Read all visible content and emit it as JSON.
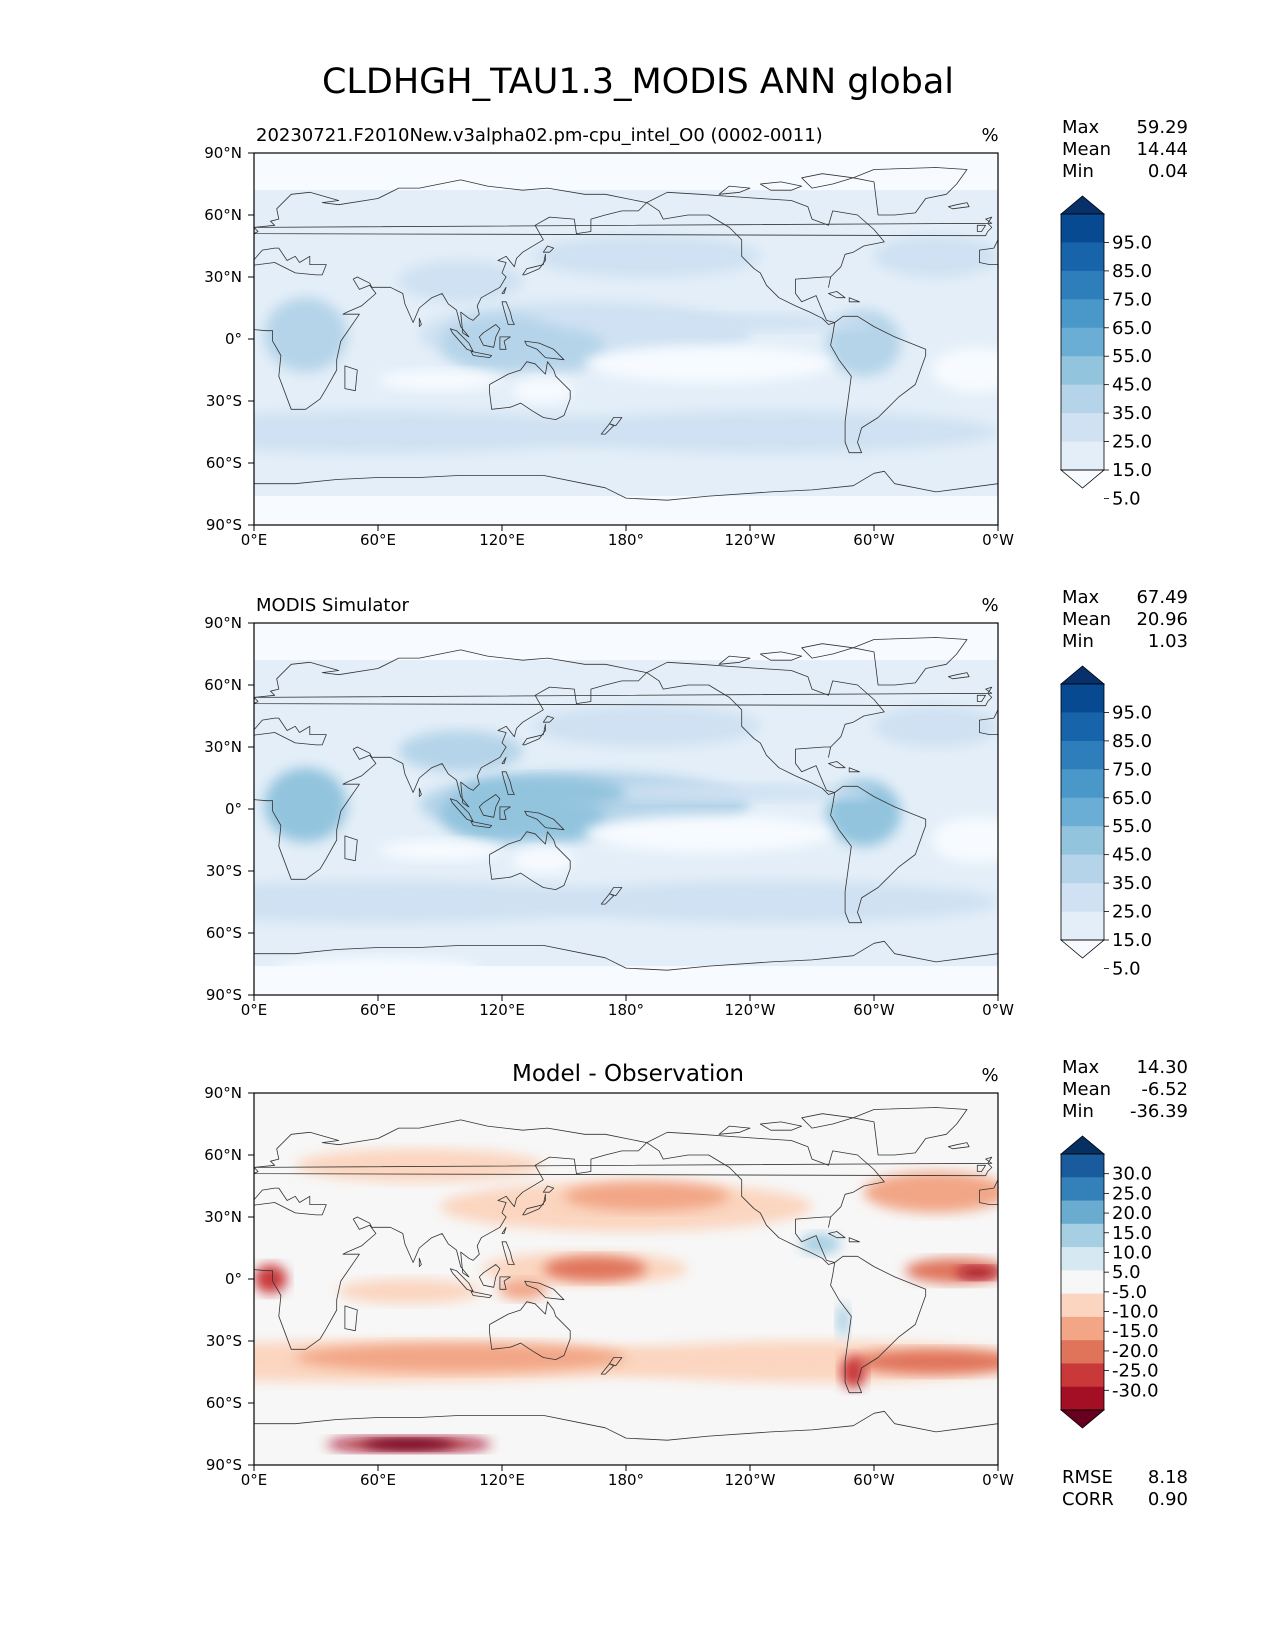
{
  "figure": {
    "title": "CLDHGH_TAU1.3_MODIS ANN global"
  },
  "colors": {
    "blues": [
      "#f7fbff",
      "#e3eef8",
      "#cfe1f2",
      "#b5d4e9",
      "#93c4de",
      "#6aaed6",
      "#4a98c9",
      "#2e7ebc",
      "#1764ab",
      "#084a91",
      "#08306b"
    ],
    "diff": [
      "#67001f",
      "#a50f26",
      "#c9393a",
      "#e0745b",
      "#f2a686",
      "#fbd5bf",
      "#f7f7f7",
      "#d6e8f1",
      "#a7cfe4",
      "#6aacd0",
      "#3480b9",
      "#1a5b9d",
      "#053061"
    ],
    "coast": "#333333"
  },
  "axes": {
    "x_ticks": [
      "0°E",
      "60°E",
      "120°E",
      "180°",
      "120°W",
      "60°W",
      "0°W"
    ],
    "y_ticks": [
      "90°N",
      "60°N",
      "30°N",
      "0°",
      "30°S",
      "60°S",
      "90°S"
    ]
  },
  "chart_data": [
    {
      "type": "heatmap",
      "title": "20230721.F2010New.v3alpha02.pm-cpu_intel_O0 (0002-0011)",
      "units": "%",
      "stats": [
        {
          "label": "Max",
          "value": "59.29"
        },
        {
          "label": "Mean",
          "value": "14.44"
        },
        {
          "label": "Min",
          "value": "0.04"
        }
      ],
      "colorbar_levels": [
        "95.0",
        "85.0",
        "75.0",
        "65.0",
        "55.0",
        "45.0",
        "35.0",
        "25.0",
        "15.0",
        "5.0"
      ],
      "xlim": [
        0,
        360
      ],
      "ylim": [
        -90,
        90
      ]
    },
    {
      "type": "heatmap",
      "title": "MODIS Simulator",
      "units": "%",
      "stats": [
        {
          "label": "Max",
          "value": "67.49"
        },
        {
          "label": "Mean",
          "value": "20.96"
        },
        {
          "label": "Min",
          "value": "1.03"
        }
      ],
      "colorbar_levels": [
        "95.0",
        "85.0",
        "75.0",
        "65.0",
        "55.0",
        "45.0",
        "35.0",
        "25.0",
        "15.0",
        "5.0"
      ],
      "xlim": [
        0,
        360
      ],
      "ylim": [
        -90,
        90
      ]
    },
    {
      "type": "heatmap",
      "title": "Model - Observation",
      "units": "%",
      "stats": [
        {
          "label": "Max",
          "value": "14.30"
        },
        {
          "label": "Mean",
          "value": "-6.52"
        },
        {
          "label": "Min",
          "value": "-36.39"
        }
      ],
      "colorbar_levels": [
        "30.0",
        "25.0",
        "20.0",
        "15.0",
        "10.0",
        "5.0",
        "-5.0",
        "-10.0",
        "-15.0",
        "-20.0",
        "-25.0",
        "-30.0"
      ],
      "metrics": [
        {
          "label": "RMSE",
          "value": "8.18"
        },
        {
          "label": "CORR",
          "value": "0.90"
        }
      ],
      "xlim": [
        0,
        360
      ],
      "ylim": [
        -90,
        90
      ]
    }
  ]
}
